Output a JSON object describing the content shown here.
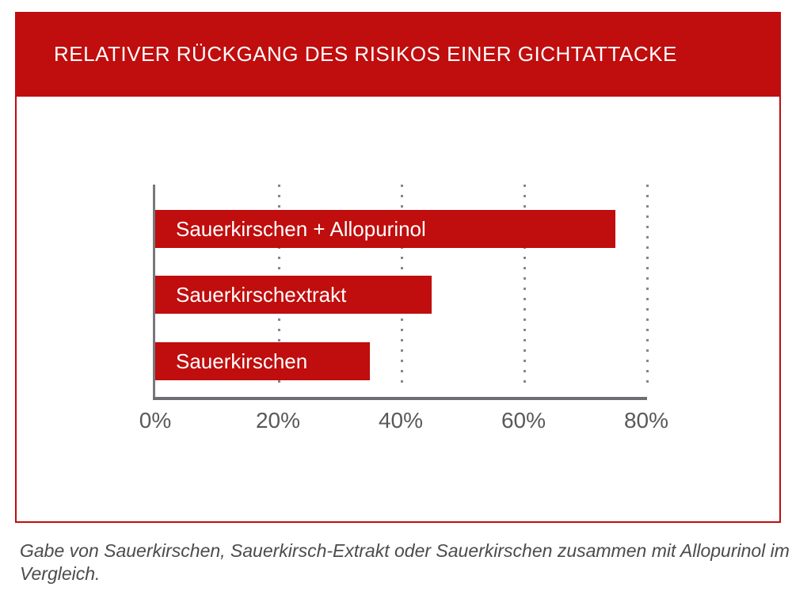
{
  "header": {
    "title": "RELATIVER RÜCKGANG DES RISIKOS EINER GICHTATTACKE"
  },
  "caption": "Gabe von Sauerkirschen, Sauerkirsch-Extrakt oder Sauerkirschen zusammen mit Allopurinol im Vergleich.",
  "colors": {
    "accent_red": "#c00d0d",
    "grid_gray": "#85878a",
    "axis_gray": "#6d6f72",
    "tick_text_gray": "#58595b",
    "caption_gray": "#4b4b4d"
  },
  "chart_data": {
    "type": "bar",
    "orientation": "horizontal",
    "title": "RELATIVER RÜCKGANG DES RISIKOS EINER GICHTATTACKE",
    "categories": [
      "Sauerkirschen + Allopurinol",
      "Sauerkirschextrakt",
      "Sauerkirschen"
    ],
    "values": [
      75,
      45,
      35
    ],
    "unit": "%",
    "xlim": [
      0,
      80
    ],
    "x_ticks": [
      0,
      20,
      40,
      60,
      80
    ],
    "x_tick_labels": [
      "0%",
      "20%",
      "40%",
      "60%",
      "80%"
    ],
    "grid": "dotted-vertical",
    "legend": "none",
    "bar_color": "#c00d0d",
    "label_position": "inside-left",
    "label_color": "#ffffff"
  }
}
